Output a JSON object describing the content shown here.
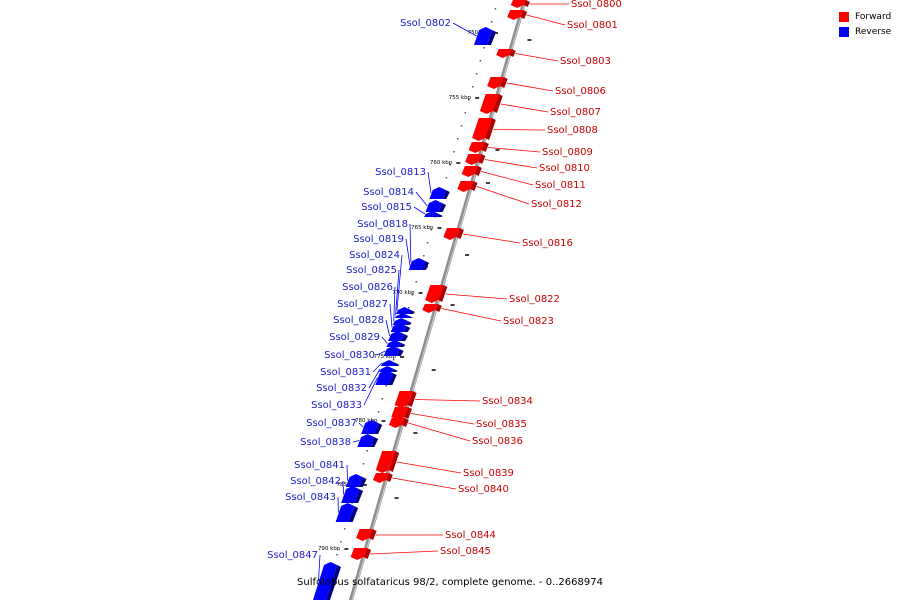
{
  "legend": {
    "forward_label": "Forward",
    "reverse_label": "Reverse",
    "forward_color": "#ff0000",
    "reverse_color": "#0000ff"
  },
  "caption": "Sulfolobus solfataricus 98/2, complete genome. - 0..2668974",
  "scale_labels": [
    "750 kbp",
    "755 kbp",
    "760 kbp",
    "765 kbp",
    "770 kbp",
    "775 kbp",
    "780 kbp",
    "785 kbp",
    "790 kbp"
  ],
  "forward_genes": [
    "Ssol_0800",
    "Ssol_0801",
    "Ssol_0803",
    "Ssol_0806",
    "Ssol_0807",
    "Ssol_0808",
    "Ssol_0809",
    "Ssol_0810",
    "Ssol_0811",
    "Ssol_0812",
    "Ssol_0816",
    "Ssol_0822",
    "Ssol_0823",
    "Ssol_0834",
    "Ssol_0835",
    "Ssol_0836",
    "Ssol_0839",
    "Ssol_0840",
    "Ssol_0844",
    "Ssol_0845"
  ],
  "reverse_genes": [
    "Ssol_0802",
    "Ssol_0813",
    "Ssol_0814",
    "Ssol_0815",
    "Ssol_0818",
    "Ssol_0819",
    "Ssol_0824",
    "Ssol_0825",
    "Ssol_0826",
    "Ssol_0827",
    "Ssol_0828",
    "Ssol_0829",
    "Ssol_0830",
    "Ssol_0831",
    "Ssol_0832",
    "Ssol_0833",
    "Ssol_0837",
    "Ssol_0838",
    "Ssol_0841",
    "Ssol_0842",
    "Ssol_0843",
    "Ssol_0847"
  ]
}
